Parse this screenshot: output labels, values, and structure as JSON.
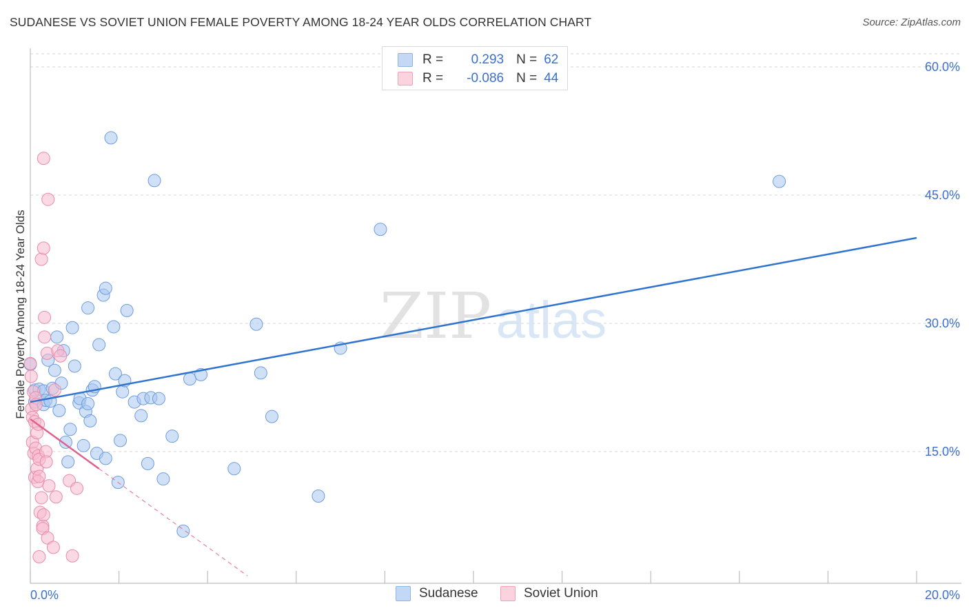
{
  "title": "SUDANESE VS SOVIET UNION FEMALE POVERTY AMONG 18-24 YEAR OLDS CORRELATION CHART",
  "source": "Source: ZipAtlas.com",
  "watermark": {
    "zip": "ZIP",
    "atlas": "atlas"
  },
  "legend_stats": [
    {
      "r_label": "R =",
      "r_value": "0.293",
      "n_label": "N =",
      "n_value": "62",
      "color": "#a9c8f0"
    },
    {
      "r_label": "R =",
      "r_value": "-0.086",
      "n_label": "N =",
      "n_value": "44",
      "color": "#f7b9cd"
    }
  ],
  "chart_data": {
    "type": "scatter",
    "xlabel": "",
    "ylabel": "Female Poverty Among 18-24 Year Olds",
    "xlim": [
      0,
      20
    ],
    "ylim": [
      0,
      63
    ],
    "x_tick_labels": [
      {
        "value": 0,
        "label": "0.0%"
      },
      {
        "value": 20,
        "label": "20.0%"
      }
    ],
    "y_tick_labels": [
      {
        "value": 15,
        "label": "15.0%"
      },
      {
        "value": 30,
        "label": "30.0%"
      },
      {
        "value": 45,
        "label": "45.0%"
      },
      {
        "value": 60,
        "label": "60.0%"
      }
    ],
    "grid": "horizontal-dashed",
    "series": [
      {
        "name": "Sudanese",
        "color": "#a9c8f0",
        "stroke": "#6c9be0",
        "trend_color": "#2f73d0",
        "trend": {
          "x0": 0.0,
          "y0": 20.8,
          "x1": 20.0,
          "y1": 40.0,
          "dashed_to": 20.0
        },
        "points": [
          [
            0.0,
            25.2
          ],
          [
            0.1,
            22.2
          ],
          [
            0.1,
            20.8
          ],
          [
            0.2,
            22.3
          ],
          [
            0.3,
            20.5
          ],
          [
            0.3,
            22.1
          ],
          [
            0.35,
            21.0
          ],
          [
            0.4,
            25.7
          ],
          [
            0.45,
            20.9
          ],
          [
            0.5,
            22.4
          ],
          [
            0.55,
            24.5
          ],
          [
            0.6,
            28.4
          ],
          [
            0.65,
            19.8
          ],
          [
            0.7,
            23.0
          ],
          [
            0.75,
            26.8
          ],
          [
            0.8,
            16.1
          ],
          [
            0.85,
            13.8
          ],
          [
            0.9,
            17.6
          ],
          [
            0.95,
            29.5
          ],
          [
            1.0,
            25.0
          ],
          [
            1.1,
            20.7
          ],
          [
            1.12,
            21.2
          ],
          [
            1.2,
            15.7
          ],
          [
            1.25,
            19.7
          ],
          [
            1.3,
            20.6
          ],
          [
            1.3,
            31.8
          ],
          [
            1.35,
            18.6
          ],
          [
            1.4,
            22.2
          ],
          [
            1.45,
            22.6
          ],
          [
            1.5,
            14.8
          ],
          [
            1.55,
            27.5
          ],
          [
            1.65,
            33.3
          ],
          [
            1.7,
            34.1
          ],
          [
            1.7,
            14.2
          ],
          [
            1.82,
            51.7
          ],
          [
            1.88,
            29.6
          ],
          [
            1.92,
            24.1
          ],
          [
            1.98,
            11.4
          ],
          [
            2.03,
            16.3
          ],
          [
            2.08,
            22.0
          ],
          [
            2.13,
            23.3
          ],
          [
            2.18,
            31.5
          ],
          [
            2.35,
            20.8
          ],
          [
            2.5,
            19.2
          ],
          [
            2.55,
            21.2
          ],
          [
            2.65,
            13.6
          ],
          [
            2.72,
            21.3
          ],
          [
            2.8,
            46.7
          ],
          [
            2.9,
            21.2
          ],
          [
            3.0,
            11.8
          ],
          [
            3.2,
            16.8
          ],
          [
            3.45,
            5.7
          ],
          [
            3.6,
            23.5
          ],
          [
            3.85,
            24.0
          ],
          [
            4.6,
            13.0
          ],
          [
            5.1,
            29.9
          ],
          [
            5.2,
            24.2
          ],
          [
            5.45,
            19.1
          ],
          [
            6.5,
            9.8
          ],
          [
            7.0,
            27.1
          ],
          [
            7.9,
            41.0
          ],
          [
            16.9,
            46.6
          ]
        ]
      },
      {
        "name": "Soviet Union",
        "color": "#f7b9cd",
        "stroke": "#e88aa8",
        "trend_color": "#e0628c",
        "trend": {
          "x0": 0.0,
          "y0": 18.8,
          "x1": 1.55,
          "y1": 13.0,
          "dashed_to": 4.9
        },
        "points": [
          [
            0.0,
            25.3
          ],
          [
            0.02,
            23.8
          ],
          [
            0.03,
            20.0
          ],
          [
            0.05,
            19.0
          ],
          [
            0.05,
            16.1
          ],
          [
            0.07,
            22.0
          ],
          [
            0.08,
            14.8
          ],
          [
            0.1,
            12.0
          ],
          [
            0.1,
            18.5
          ],
          [
            0.12,
            21.3
          ],
          [
            0.12,
            15.4
          ],
          [
            0.13,
            20.5
          ],
          [
            0.15,
            13.0
          ],
          [
            0.15,
            17.2
          ],
          [
            0.17,
            11.5
          ],
          [
            0.18,
            14.5
          ],
          [
            0.18,
            18.2
          ],
          [
            0.2,
            2.7
          ],
          [
            0.2,
            12.1
          ],
          [
            0.2,
            14.1
          ],
          [
            0.22,
            7.9
          ],
          [
            0.25,
            9.6
          ],
          [
            0.25,
            37.5
          ],
          [
            0.28,
            6.3
          ],
          [
            0.28,
            6.0
          ],
          [
            0.3,
            7.6
          ],
          [
            0.3,
            49.3
          ],
          [
            0.3,
            38.8
          ],
          [
            0.32,
            30.7
          ],
          [
            0.32,
            28.4
          ],
          [
            0.35,
            15.0
          ],
          [
            0.36,
            13.8
          ],
          [
            0.38,
            26.5
          ],
          [
            0.39,
            4.9
          ],
          [
            0.4,
            44.5
          ],
          [
            0.42,
            11.0
          ],
          [
            0.52,
            3.8
          ],
          [
            0.55,
            22.2
          ],
          [
            0.58,
            9.7
          ],
          [
            0.62,
            26.8
          ],
          [
            0.68,
            26.2
          ],
          [
            0.88,
            11.6
          ],
          [
            0.95,
            2.8
          ],
          [
            1.05,
            10.7
          ]
        ]
      }
    ]
  },
  "bottom_legend": [
    {
      "label": "Sudanese",
      "color": "#a9c8f0"
    },
    {
      "label": "Soviet Union",
      "color": "#f7b9cd"
    }
  ]
}
